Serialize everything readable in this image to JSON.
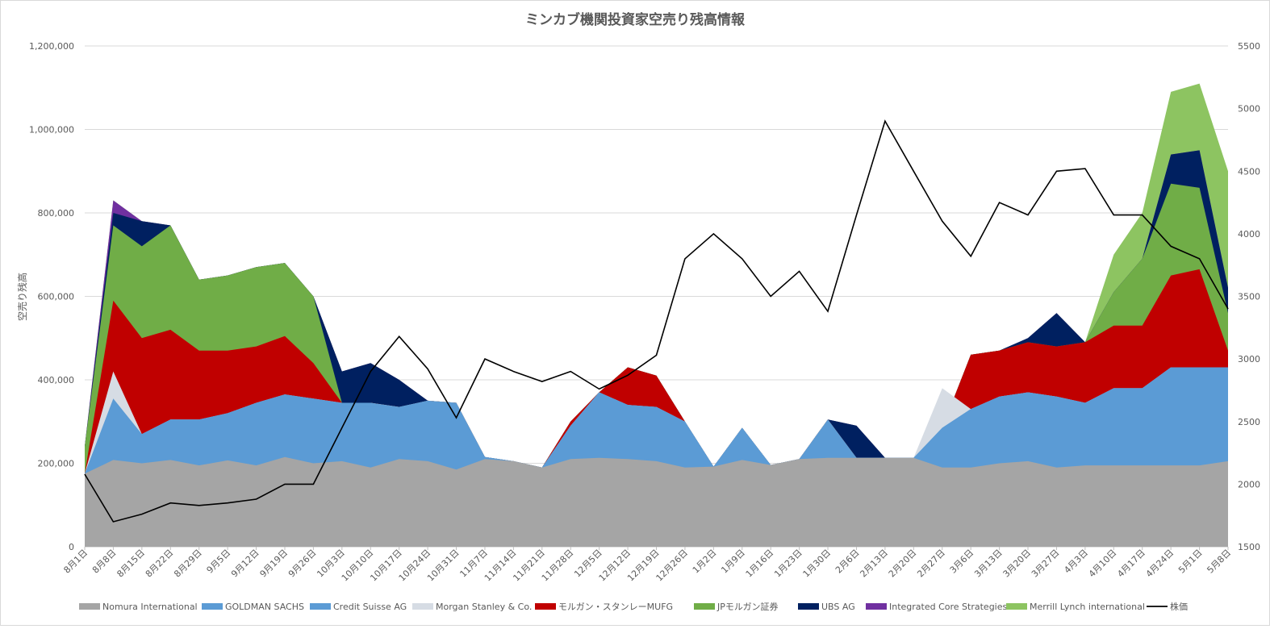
{
  "chart_data": {
    "type": "area",
    "title": "ミンカブ機関投資家空売り残高情報",
    "ylabel": "空売り残高",
    "y2label": "",
    "ylim": [
      0,
      1200000
    ],
    "y2lim": [
      1500,
      5500
    ],
    "yticks": [
      "0",
      "200,000",
      "400,000",
      "600,000",
      "800,000",
      "1,000,000",
      "1,200,000"
    ],
    "y2ticks": [
      "1500",
      "2000",
      "2500",
      "3000",
      "3500",
      "4000",
      "4500",
      "5000",
      "5500"
    ],
    "categories": [
      "8月1日",
      "8月8日",
      "8月15日",
      "8月22日",
      "8月29日",
      "9月5日",
      "9月12日",
      "9月19日",
      "9月26日",
      "10月3日",
      "10月10日",
      "10月17日",
      "10月24日",
      "10月31日",
      "11月7日",
      "11月14日",
      "11月21日",
      "11月28日",
      "12月5日",
      "12月12日",
      "12月19日",
      "12月26日",
      "1月2日",
      "1月9日",
      "1月16日",
      "1月23日",
      "1月30日",
      "2月6日",
      "2月13日",
      "2月20日",
      "2月27日",
      "3月6日",
      "3月13日",
      "3月20日",
      "3月27日",
      "4月3日",
      "4月10日",
      "4月17日",
      "4月24日",
      "5月1日",
      "5月8日"
    ],
    "legend_position": "bottom",
    "grid": true,
    "colors": {
      "nomura": "#a5a5a5",
      "goldman": "#5b9bd5",
      "credit": "#5b9bd5",
      "morgan": "#d6dce4",
      "mufg": "#c00000",
      "jp": "#70ad47",
      "ubs": "#002060",
      "ics": "#7030a0",
      "merrill": "#8dc461",
      "price": "#000000"
    },
    "series": [
      {
        "key": "nomura",
        "name": "Nomura International",
        "cumulative": [
          175000,
          208000,
          200000,
          208000,
          195000,
          207000,
          195000,
          215000,
          200000,
          205000,
          190000,
          210000,
          205000,
          185000,
          210000,
          205000,
          190000,
          210000,
          213000,
          210000,
          205000,
          190000,
          192000,
          208000,
          196000,
          210000,
          213000,
          213000,
          213000,
          213000,
          190000,
          190000,
          200000,
          205000,
          190000,
          195000,
          195000,
          195000,
          195000,
          195000,
          205000
        ]
      },
      {
        "key": "goldman",
        "name": "GOLDMAN SACHS",
        "cumulative": [
          175000,
          350000,
          270000,
          305000,
          305000,
          320000,
          345000,
          365000,
          355000,
          335000,
          335000,
          335000,
          350000,
          340000,
          215000,
          205000,
          190000,
          290000,
          370000,
          340000,
          335000,
          300000,
          192000,
          285000,
          196000,
          210000,
          300000,
          213000,
          213000,
          213000,
          285000,
          330000,
          360000,
          370000,
          360000,
          345000,
          380000,
          380000,
          430000,
          430000,
          430000
        ]
      },
      {
        "key": "credit",
        "name": "Credit Suisse AG",
        "cumulative": [
          175000,
          355000,
          270000,
          305000,
          305000,
          320000,
          345000,
          365000,
          355000,
          345000,
          345000,
          335000,
          350000,
          345000,
          215000,
          205000,
          190000,
          290000,
          370000,
          340000,
          335000,
          300000,
          192000,
          285000,
          196000,
          210000,
          305000,
          213000,
          213000,
          213000,
          285000,
          330000,
          360000,
          370000,
          360000,
          345000,
          380000,
          380000,
          430000,
          430000,
          430000
        ]
      },
      {
        "key": "morgan",
        "name": "Morgan Stanley & Co.",
        "cumulative": [
          175000,
          420000,
          270000,
          305000,
          305000,
          320000,
          345000,
          365000,
          355000,
          345000,
          345000,
          335000,
          350000,
          345000,
          215000,
          205000,
          190000,
          290000,
          370000,
          340000,
          335000,
          300000,
          192000,
          285000,
          196000,
          210000,
          305000,
          213000,
          213000,
          213000,
          380000,
          330000,
          360000,
          370000,
          360000,
          345000,
          380000,
          380000,
          430000,
          430000,
          430000
        ]
      },
      {
        "key": "mufg",
        "name": "モルガン・スタンレーMUFG",
        "cumulative": [
          175000,
          590000,
          500000,
          520000,
          470000,
          470000,
          480000,
          505000,
          440000,
          345000,
          345000,
          335000,
          350000,
          345000,
          215000,
          205000,
          190000,
          300000,
          370000,
          430000,
          410000,
          300000,
          192000,
          285000,
          196000,
          210000,
          305000,
          213000,
          213000,
          213000,
          285000,
          460000,
          470000,
          490000,
          480000,
          490000,
          530000,
          530000,
          650000,
          665000,
          470000
        ]
      },
      {
        "key": "jp",
        "name": "JPモルガン証券",
        "cumulative": [
          240000,
          770000,
          720000,
          770000,
          640000,
          650000,
          670000,
          680000,
          600000,
          345000,
          345000,
          335000,
          350000,
          345000,
          215000,
          205000,
          190000,
          300000,
          370000,
          430000,
          410000,
          300000,
          192000,
          285000,
          196000,
          210000,
          305000,
          213000,
          213000,
          213000,
          285000,
          460000,
          470000,
          490000,
          480000,
          490000,
          610000,
          690000,
          870000,
          860000,
          560000
        ]
      },
      {
        "key": "ubs",
        "name": "UBS AG",
        "cumulative": [
          240000,
          800000,
          780000,
          770000,
          640000,
          650000,
          670000,
          680000,
          600000,
          420000,
          440000,
          400000,
          350000,
          345000,
          215000,
          205000,
          190000,
          300000,
          370000,
          430000,
          410000,
          300000,
          192000,
          285000,
          196000,
          210000,
          305000,
          290000,
          213000,
          213000,
          285000,
          460000,
          470000,
          500000,
          560000,
          490000,
          610000,
          690000,
          940000,
          950000,
          620000
        ]
      },
      {
        "key": "ics",
        "name": "Integrated Core Strategies",
        "cumulative": [
          240000,
          830000,
          780000,
          770000,
          640000,
          650000,
          670000,
          680000,
          600000,
          420000,
          440000,
          400000,
          350000,
          345000,
          215000,
          205000,
          190000,
          300000,
          370000,
          430000,
          410000,
          300000,
          192000,
          285000,
          196000,
          210000,
          305000,
          290000,
          213000,
          213000,
          285000,
          460000,
          470000,
          500000,
          560000,
          490000,
          610000,
          690000,
          940000,
          950000,
          620000
        ]
      },
      {
        "key": "merrill",
        "name": "Merrill Lynch international",
        "cumulative": [
          240000,
          830000,
          780000,
          770000,
          640000,
          650000,
          670000,
          680000,
          600000,
          420000,
          440000,
          400000,
          350000,
          345000,
          215000,
          205000,
          190000,
          300000,
          370000,
          430000,
          410000,
          300000,
          192000,
          285000,
          196000,
          210000,
          305000,
          290000,
          213000,
          213000,
          285000,
          460000,
          470000,
          500000,
          560000,
          490000,
          700000,
          800000,
          1090000,
          1110000,
          900000
        ]
      },
      {
        "key": "price",
        "name": "株価",
        "axis": "right",
        "values": [
          2080,
          1700,
          1760,
          1850,
          1830,
          1850,
          1880,
          2000,
          2000,
          2450,
          2900,
          3180,
          2920,
          2530,
          3000,
          2900,
          2820,
          2900,
          2760,
          2870,
          3030,
          3800,
          4000,
          3800,
          3500,
          3700,
          3380,
          4150,
          4900,
          4500,
          4100,
          3820,
          4250,
          4150,
          4500,
          4520,
          4150,
          4150,
          3900,
          3800,
          3400
        ]
      }
    ]
  }
}
